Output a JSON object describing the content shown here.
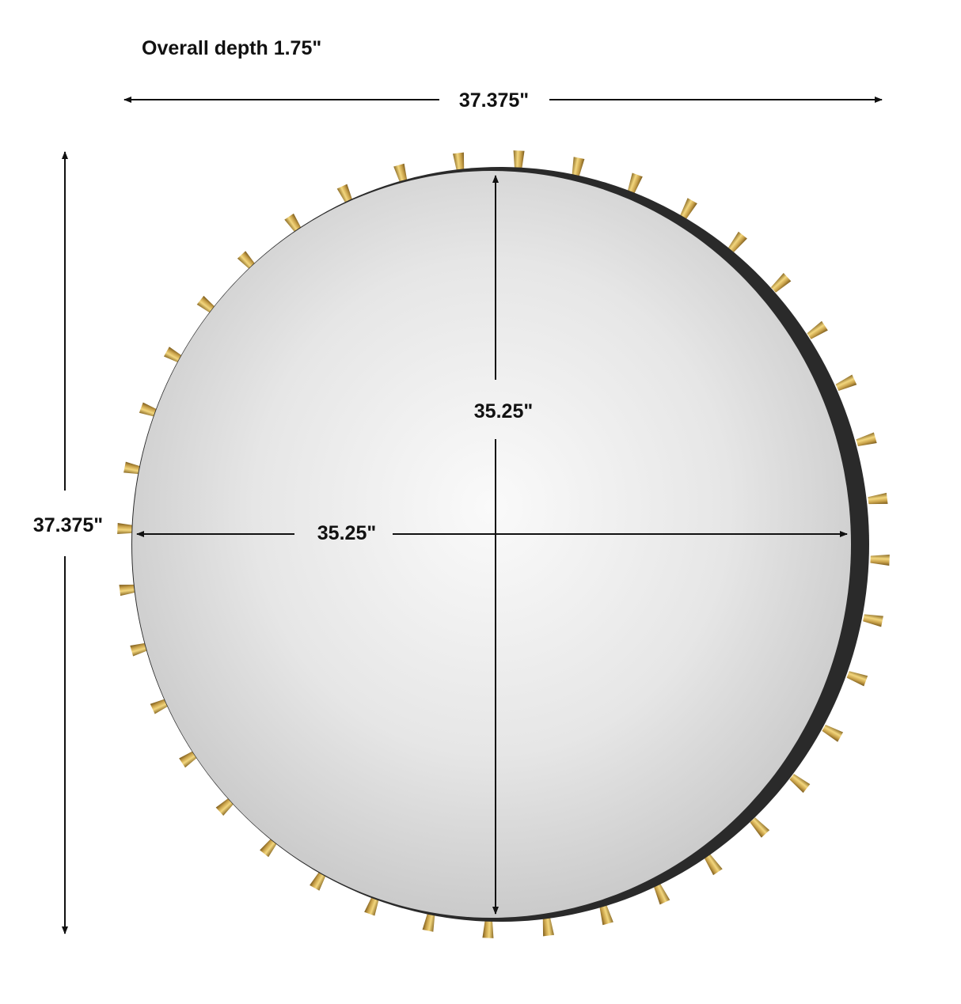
{
  "depth_label": "Overall depth 1.75\"",
  "dimensions": {
    "overall_width": "37.375\"",
    "overall_height": "37.375\"",
    "mirror_height": "35.25\"",
    "mirror_width": "35.25\""
  },
  "colors": {
    "frame": "#2a2a2a",
    "stud": "#c9a24a",
    "mirror_light": "#f4f4f4",
    "mirror_dark": "#c8c8c8",
    "lines": "#111111"
  },
  "stud_count": 40
}
